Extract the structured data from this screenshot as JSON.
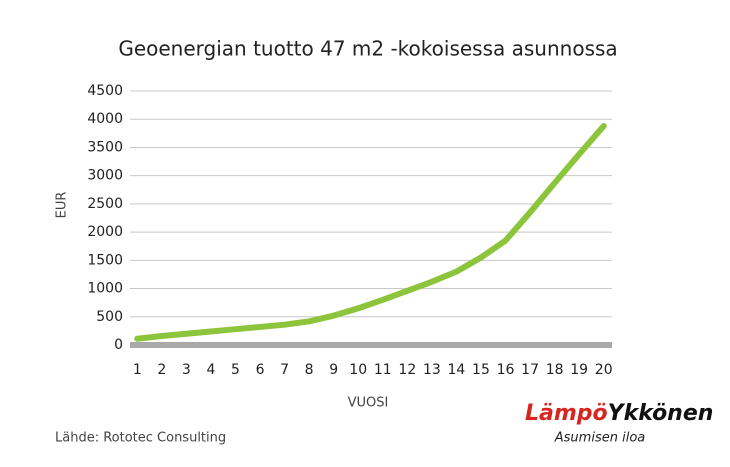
{
  "chart_data": {
    "type": "line",
    "title": "Geoenergian tuotto 47 m2 -kokoisessa asunnossa",
    "x_label": "VUOSI",
    "y_label": "EUR",
    "categories": [
      "1",
      "2",
      "3",
      "4",
      "5",
      "6",
      "7",
      "8",
      "9",
      "10",
      "11",
      "12",
      "13",
      "14",
      "15",
      "16",
      "17",
      "18",
      "19",
      "20"
    ],
    "values": [
      110,
      160,
      200,
      240,
      280,
      320,
      360,
      420,
      520,
      650,
      800,
      960,
      1120,
      1300,
      1550,
      1850,
      2350,
      2870,
      3380,
      3880
    ],
    "color": "#8cc43c",
    "ylim": [
      0,
      4500
    ],
    "yticks": [
      0,
      500,
      1000,
      1500,
      2000,
      2500,
      3000,
      3500,
      4000,
      4500
    ],
    "grid": true
  },
  "source": "Lähde: Rototec Consulting",
  "logo": {
    "part1": "Lämpö",
    "part2": "Ykkönen",
    "tagline": "Asumisen iloa"
  }
}
